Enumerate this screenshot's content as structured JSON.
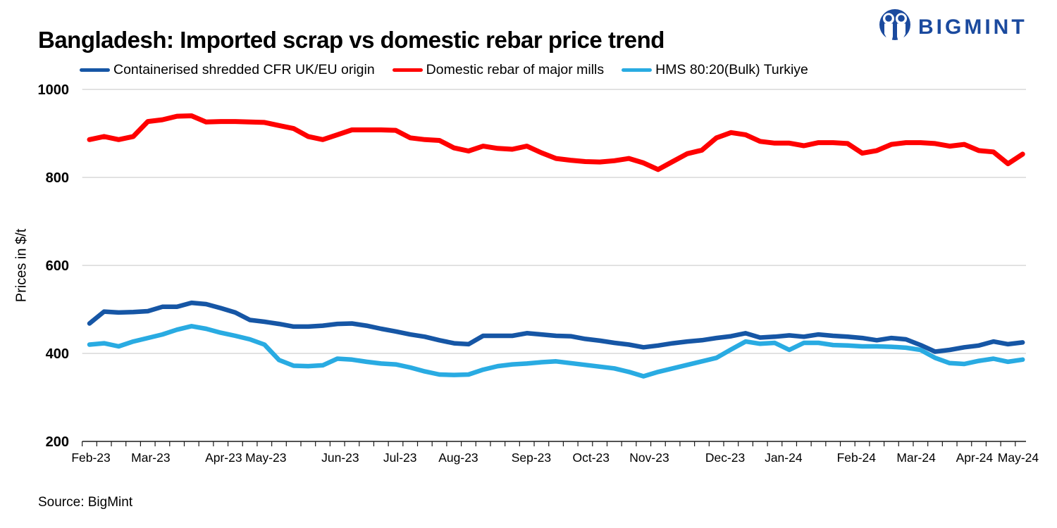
{
  "header": {
    "title": "Bangladesh: Imported scrap vs domestic rebar price trend",
    "brand": "BIGMINT"
  },
  "footer": {
    "source": "Source: BigMint"
  },
  "colors": {
    "brand_blue": "#1B4A9E",
    "grid": "#D9D9D9",
    "axis": "#1a1a1a",
    "text": "#000000"
  },
  "chart_data": {
    "type": "line",
    "title": "Bangladesh: Imported scrap vs domestic rebar price trend",
    "xlabel": "",
    "ylabel": "Prices in $/t",
    "ylim": [
      200,
      1000
    ],
    "y_ticks": [
      200,
      400,
      600,
      800,
      1000
    ],
    "grid": "horizontal",
    "legend_position": "top",
    "x_unit": "week",
    "x_axis": {
      "labels": [
        "Feb-23",
        "Mar-23",
        "Apr-23",
        "May-23",
        "Jun-23",
        "Jul-23",
        "Aug-23",
        "Sep-23",
        "Oct-23",
        "Nov-23",
        "Dec-23",
        "Jan-24",
        "Feb-24",
        "Mar-24",
        "Apr-24",
        "May-24"
      ],
      "positions_week": [
        0.1,
        4.2,
        9.2,
        12.1,
        17.2,
        21.3,
        25.3,
        30.3,
        34.4,
        38.4,
        43.6,
        47.6,
        52.6,
        56.7,
        60.7,
        63.7
      ]
    },
    "series": [
      {
        "id": "shredded",
        "name": "Containerised shredded CFR UK/EU origin",
        "color": "#1656A5",
        "width": 6.5,
        "values": [
          468,
          495,
          493,
          494,
          496,
          506,
          506,
          515,
          512,
          503,
          493,
          476,
          472,
          467,
          461,
          461,
          463,
          467,
          468,
          463,
          456,
          450,
          443,
          438,
          430,
          423,
          421,
          440,
          440,
          440,
          446,
          443,
          440,
          439,
          433,
          429,
          424,
          420,
          414,
          418,
          423,
          427,
          430,
          435,
          439,
          446,
          436,
          438,
          441,
          438,
          443,
          440,
          438,
          435,
          430,
          435,
          432,
          419,
          404,
          408,
          414,
          418,
          427,
          421,
          425
        ]
      },
      {
        "id": "rebar",
        "name": "Domestic rebar of major mills",
        "color": "#FF0000",
        "width": 7,
        "values": [
          886,
          893,
          886,
          893,
          927,
          931,
          939,
          940,
          926,
          927,
          927,
          926,
          925,
          918,
          911,
          893,
          886,
          897,
          908,
          908,
          908,
          907,
          890,
          886,
          884,
          867,
          860,
          871,
          866,
          864,
          871,
          856,
          843,
          839,
          836,
          835,
          838,
          843,
          833,
          818,
          836,
          854,
          862,
          890,
          902,
          897,
          882,
          878,
          878,
          872,
          879,
          879,
          877,
          855,
          861,
          875,
          879,
          879,
          877,
          871,
          875,
          861,
          858,
          831,
          853
        ]
      },
      {
        "id": "hms",
        "name": "HMS 80:20(Bulk) Turkiye",
        "color": "#29ABE2",
        "width": 6.5,
        "values": [
          420,
          423,
          416,
          427,
          435,
          443,
          454,
          462,
          456,
          447,
          440,
          432,
          420,
          385,
          372,
          371,
          373,
          388,
          386,
          381,
          377,
          375,
          368,
          359,
          352,
          351,
          352,
          363,
          371,
          375,
          377,
          380,
          382,
          378,
          374,
          370,
          366,
          358,
          348,
          358,
          366,
          374,
          382,
          390,
          409,
          427,
          422,
          424,
          408,
          424,
          424,
          419,
          418,
          416,
          416,
          415,
          413,
          408,
          390,
          378,
          376,
          383,
          388,
          381,
          386
        ]
      }
    ]
  }
}
